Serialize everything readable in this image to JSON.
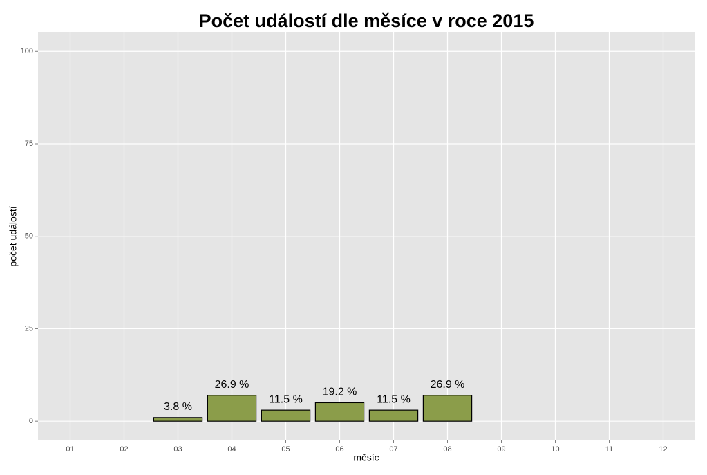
{
  "chart_data": {
    "type": "bar",
    "title": "Počet událostí dle měsíce v roce 2015",
    "x_label": "měsíc",
    "y_label": "počet událostí",
    "categories": [
      "01",
      "02",
      "03",
      "04",
      "05",
      "06",
      "07",
      "08",
      "09",
      "10",
      "11",
      "12"
    ],
    "values": [
      null,
      null,
      1,
      7,
      3,
      5,
      3,
      7,
      null,
      null,
      null,
      null
    ],
    "value_labels": [
      null,
      null,
      "3.8 %",
      "26.9 %",
      "11.5 %",
      "19.2 %",
      "11.5 %",
      "26.9 %",
      null,
      null,
      null,
      null
    ],
    "color": "#8b9d4a",
    "ylim": [
      -5.2,
      105.1
    ],
    "yticks": [
      0,
      25,
      50,
      75,
      100
    ],
    "grid": true
  }
}
